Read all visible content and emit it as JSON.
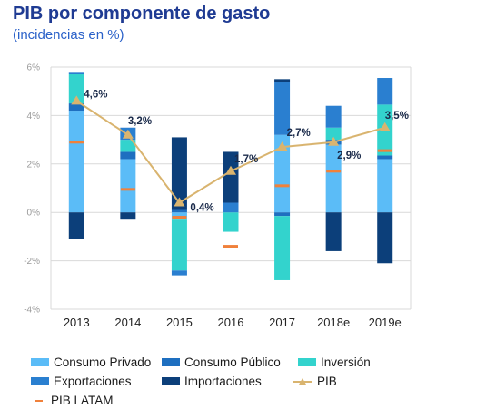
{
  "title": "PIB por componente de gasto",
  "subtitle": "(incidencias en %)",
  "chart_data": {
    "type": "bar",
    "stacked": true,
    "categories": [
      "2013",
      "2014",
      "2015",
      "2016",
      "2017",
      "2018e",
      "2019e"
    ],
    "ylim": [
      -4,
      6
    ],
    "yticks": [
      -4,
      -2,
      0,
      2,
      4,
      6
    ],
    "ytick_labels": [
      "-4%",
      "-2%",
      "0%",
      "2%",
      "4%",
      "6%"
    ],
    "grid": true,
    "legend_position": "bottom",
    "series": [
      {
        "name": "Consumo Privado",
        "color": "#5bbcf7",
        "values": [
          4.2,
          2.2,
          -0.3,
          0.0,
          3.2,
          2.8,
          2.2
        ]
      },
      {
        "name": "Consumo Público",
        "color": "#1e6fc0",
        "values": [
          0.3,
          0.3,
          0.1,
          0.0,
          -0.15,
          0.2,
          0.15
        ]
      },
      {
        "name": "Inversión",
        "color": "#33d3cd",
        "values": [
          1.2,
          0.5,
          -2.1,
          -0.8,
          -2.65,
          0.5,
          2.1
        ]
      },
      {
        "name": "Exportaciones",
        "color": "#2a7fd0",
        "values": [
          0.1,
          0.5,
          -0.2,
          0.4,
          2.2,
          0.9,
          1.1
        ]
      },
      {
        "name": "Importaciones",
        "color": "#0c3f7a",
        "values": [
          -1.1,
          -0.3,
          3.0,
          2.1,
          0.1,
          -1.6,
          -2.1
        ]
      }
    ],
    "pib": {
      "name": "PIB",
      "color": "#d9b46f",
      "values": [
        4.6,
        3.2,
        0.4,
        1.7,
        2.7,
        2.9,
        3.5
      ],
      "labels": [
        "4,6%",
        "3,2%",
        "0,4%",
        "1,7%",
        "2,7%",
        "2,9%",
        "3,5%"
      ]
    },
    "pib_latam": {
      "name": "PIB LATAM",
      "color": "#f0813b",
      "values": [
        2.9,
        0.95,
        -0.2,
        -1.4,
        1.1,
        1.7,
        2.55
      ]
    }
  }
}
